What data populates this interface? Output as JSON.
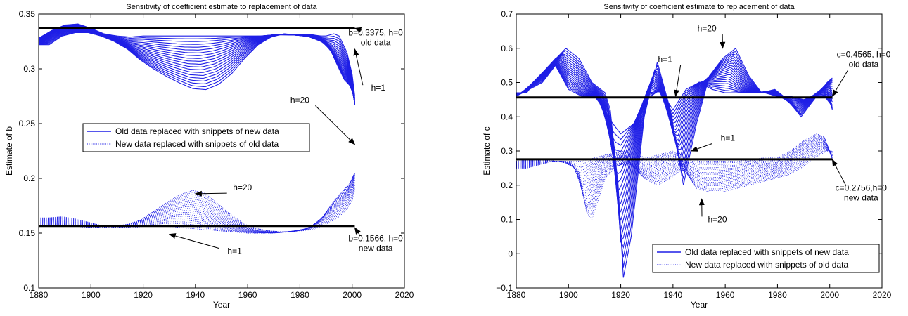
{
  "colors": {
    "series": "#1f1fe6",
    "reference": "#000000",
    "axis": "#000000"
  },
  "chart_data": [
    {
      "type": "line",
      "title": "Sensitivity of coefficient estimate to replacement of data",
      "xlabel": "Year",
      "ylabel": "Estimate of b",
      "xlim": [
        1880,
        2020
      ],
      "ylim": [
        0.1,
        0.35
      ],
      "xticks": [
        1880,
        1900,
        1920,
        1940,
        1960,
        1980,
        2000,
        2020
      ],
      "yticks": [
        0.1,
        0.15,
        0.2,
        0.25,
        0.3,
        0.35
      ],
      "ytick_labels": [
        "0.1",
        "0.15",
        "0.2",
        "0.25",
        "0.3",
        "0.35"
      ],
      "grid": false,
      "legend": {
        "placement": "center",
        "entries": [
          "Old data replaced with snippets of new data",
          "New data replaced with snippets of old data"
        ]
      },
      "series": [
        {
          "style": "solid",
          "n_curves": 20,
          "x": [
            1880,
            1885,
            1890,
            1895,
            1900,
            1905,
            1910,
            1915,
            1920,
            1925,
            1930,
            1935,
            1940,
            1945,
            1950,
            1955,
            1960,
            1965,
            1970,
            1975,
            1980,
            1985,
            1988,
            1990,
            1993,
            1995,
            1998,
            2000,
            2001
          ],
          "h1": [
            0.328,
            0.335,
            0.34,
            0.341,
            0.337,
            0.332,
            0.33,
            0.329,
            0.33,
            0.33,
            0.33,
            0.33,
            0.33,
            0.33,
            0.33,
            0.33,
            0.33,
            0.33,
            0.331,
            0.331,
            0.331,
            0.331,
            0.33,
            0.33,
            0.332,
            0.33,
            0.315,
            0.295,
            0.275
          ],
          "h20": [
            0.322,
            0.33,
            0.333,
            0.333,
            0.33,
            0.325,
            0.318,
            0.308,
            0.3,
            0.293,
            0.287,
            0.282,
            0.281,
            0.286,
            0.296,
            0.31,
            0.322,
            0.329,
            0.332,
            0.331,
            0.329,
            0.324,
            0.316,
            0.305,
            0.29,
            0.285,
            0.27,
            0.25,
            0.23
          ]
        },
        {
          "style": "dotted",
          "n_curves": 20,
          "x": [
            1880,
            1885,
            1890,
            1895,
            1900,
            1905,
            1910,
            1915,
            1920,
            1925,
            1930,
            1935,
            1940,
            1945,
            1950,
            1955,
            1960,
            1965,
            1970,
            1975,
            1980,
            1985,
            1988,
            1990,
            1993,
            1995,
            1998,
            2000,
            2001
          ],
          "h1": [
            0.156,
            0.158,
            0.157,
            0.156,
            0.155,
            0.155,
            0.155,
            0.155,
            0.156,
            0.156,
            0.156,
            0.155,
            0.154,
            0.153,
            0.152,
            0.151,
            0.15,
            0.15,
            0.15,
            0.151,
            0.152,
            0.153,
            0.156,
            0.158,
            0.162,
            0.165,
            0.172,
            0.18,
            0.19
          ],
          "h20": [
            0.164,
            0.165,
            0.163,
            0.16,
            0.157,
            0.157,
            0.158,
            0.162,
            0.17,
            0.178,
            0.185,
            0.189,
            0.186,
            0.176,
            0.166,
            0.158,
            0.154,
            0.152,
            0.151,
            0.152,
            0.155,
            0.165,
            0.176,
            0.182,
            0.19,
            0.195,
            0.21,
            0.222,
            0.229
          ]
        }
      ],
      "reference_lines": [
        {
          "y": 0.3375,
          "x": [
            1880,
            2001
          ]
        },
        {
          "y": 0.1566,
          "x": [
            1880,
            2001
          ]
        }
      ],
      "annotations": [
        {
          "lines": [
            "b=0.3375, h=0",
            "old data"
          ],
          "x": 2009,
          "y": 0.326,
          "arrow_to": [
            2001,
            0.337
          ]
        },
        {
          "lines": [
            "h=1"
          ],
          "x": 2010,
          "y": 0.28,
          "arrow_to": [
            2001,
            0.318
          ]
        },
        {
          "lines": [
            "h=20"
          ],
          "x": 1980,
          "y": 0.269,
          "arrow_to": [
            2001,
            0.231
          ]
        },
        {
          "lines": [
            "h=20"
          ],
          "x": 1958,
          "y": 0.189,
          "arrow_to": [
            1940,
            0.186
          ]
        },
        {
          "lines": [
            "h=1"
          ],
          "x": 1955,
          "y": 0.131,
          "arrow_to": [
            1930,
            0.149
          ]
        },
        {
          "lines": [
            "b=0.1566, h=0",
            "new data"
          ],
          "x": 2009,
          "y": 0.138,
          "arrow_to": [
            2001,
            0.155
          ]
        }
      ]
    },
    {
      "type": "line",
      "title": "Sensitivity of coefficient estimate to replacement of data",
      "xlabel": "Year",
      "ylabel": "Estimate of c",
      "xlim": [
        1880,
        2020
      ],
      "ylim": [
        -0.1,
        0.7
      ],
      "xticks": [
        1880,
        1900,
        1920,
        1940,
        1960,
        1980,
        2000,
        2020
      ],
      "yticks": [
        -0.1,
        0,
        0.1,
        0.2,
        0.3,
        0.4,
        0.5,
        0.6,
        0.7
      ],
      "ytick_labels": [
        "−0.1",
        "0",
        "0.1",
        "0.2",
        "0.3",
        "0.4",
        "0.5",
        "0.6",
        "0.7"
      ],
      "grid": false,
      "legend": {
        "placement": "bottom-right",
        "entries": [
          "Old data replaced with snippets of new data",
          "New data replaced with snippets of old data"
        ]
      },
      "series": [
        {
          "style": "solid",
          "n_curves": 20,
          "x": [
            1880,
            1885,
            1890,
            1895,
            1900,
            1905,
            1910,
            1912,
            1915,
            1917,
            1920,
            1925,
            1930,
            1935,
            1940,
            1945,
            1950,
            1955,
            1960,
            1965,
            1970,
            1975,
            1980,
            1985,
            1990,
            1995,
            1998,
            2000,
            2001
          ],
          "h1": [
            0.46,
            0.48,
            0.5,
            0.55,
            0.48,
            0.46,
            0.46,
            0.44,
            0.4,
            0.38,
            0.35,
            0.38,
            0.45,
            0.48,
            0.42,
            0.48,
            0.5,
            0.48,
            0.47,
            0.47,
            0.47,
            0.47,
            0.46,
            0.46,
            0.45,
            0.46,
            0.46,
            0.44,
            0.43
          ],
          "h20": [
            0.47,
            0.52,
            0.56,
            0.6,
            0.57,
            0.5,
            0.47,
            0.42,
            0.2,
            -0.07,
            0.05,
            0.4,
            0.56,
            0.42,
            0.2,
            0.38,
            0.52,
            0.57,
            0.6,
            0.52,
            0.47,
            0.48,
            0.45,
            0.4,
            0.45,
            0.5,
            0.52,
            0.48,
            0.25
          ]
        },
        {
          "style": "dotted",
          "n_curves": 20,
          "x": [
            1880,
            1885,
            1890,
            1895,
            1900,
            1903,
            1905,
            1910,
            1915,
            1920,
            1925,
            1930,
            1935,
            1940,
            1945,
            1950,
            1955,
            1960,
            1965,
            1970,
            1975,
            1980,
            1985,
            1990,
            1995,
            1998,
            2000,
            2001
          ],
          "h1": [
            0.27,
            0.275,
            0.275,
            0.27,
            0.27,
            0.27,
            0.27,
            0.28,
            0.29,
            0.3,
            0.29,
            0.28,
            0.29,
            0.3,
            0.28,
            0.27,
            0.27,
            0.27,
            0.27,
            0.275,
            0.28,
            0.28,
            0.3,
            0.33,
            0.35,
            0.34,
            0.3,
            0.28
          ],
          "h20": [
            0.25,
            0.26,
            0.27,
            0.27,
            0.24,
            0.12,
            0.1,
            0.22,
            0.26,
            0.26,
            0.22,
            0.2,
            0.22,
            0.25,
            0.19,
            0.18,
            0.18,
            0.19,
            0.2,
            0.21,
            0.22,
            0.23,
            0.25,
            0.28,
            0.3,
            0.3,
            0.27,
            0.25
          ]
        }
      ],
      "reference_lines": [
        {
          "y": 0.4565,
          "x": [
            1880,
            2001
          ]
        },
        {
          "y": 0.2756,
          "x": [
            1880,
            2001
          ]
        }
      ],
      "annotations": [
        {
          "lines": [
            "h=20"
          ],
          "x": 1953,
          "y": 0.65,
          "arrow_to": [
            1959,
            0.6
          ]
        },
        {
          "lines": [
            "h=1"
          ],
          "x": 1937,
          "y": 0.56,
          "arrow_to": [
            1941,
            0.46
          ]
        },
        {
          "lines": [
            "c=0.4565, h=0",
            "old data"
          ],
          "x": 2013,
          "y": 0.56,
          "arrow_to": [
            2001,
            0.46
          ]
        },
        {
          "lines": [
            "h=1"
          ],
          "x": 1961,
          "y": 0.33,
          "arrow_to": [
            1947,
            0.3
          ]
        },
        {
          "lines": [
            "c=0.2756,h=0",
            "new data"
          ],
          "x": 2012,
          "y": 0.17,
          "arrow_to": [
            2001,
            0.275
          ]
        },
        {
          "lines": [
            "h=20"
          ],
          "x": 1957,
          "y": 0.092,
          "arrow_to": [
            1951,
            0.16
          ]
        }
      ]
    }
  ]
}
